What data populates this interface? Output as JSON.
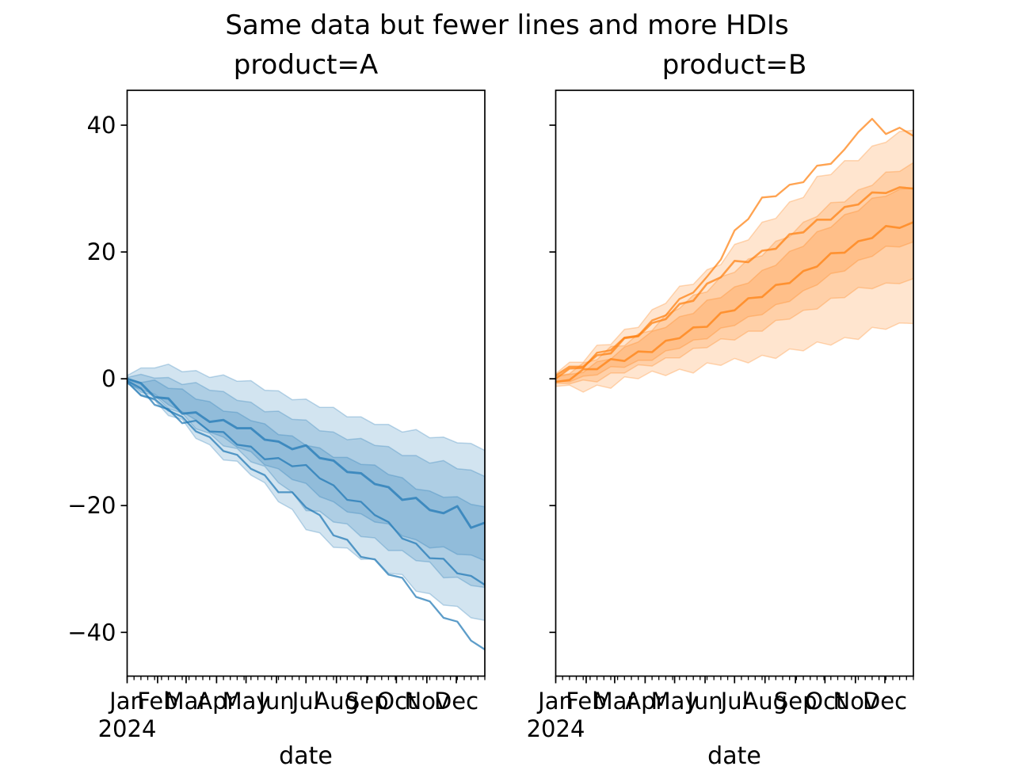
{
  "figure": {
    "suptitle": "Same data but fewer lines and more HDIs",
    "xlabel": "date",
    "year_label": "2024"
  },
  "chart_data": [
    {
      "type": "line",
      "title": "product=A",
      "xlabel": "date",
      "color": "#1f77b4",
      "x_unit": "days since 2024-01-01",
      "xlim_days": [
        0,
        364
      ],
      "ylim": [
        -46.9,
        45.5
      ],
      "yticks": [
        {
          "v": 40,
          "label": "40"
        },
        {
          "v": 20,
          "label": "20"
        },
        {
          "v": 0,
          "label": "0"
        },
        {
          "v": -20,
          "label": "−20"
        },
        {
          "v": -40,
          "label": "−40"
        }
      ],
      "show_ytick_labels": true,
      "month_ticks": [
        {
          "d": 0,
          "label": "Jan"
        },
        {
          "d": 31,
          "label": "Feb"
        },
        {
          "d": 60,
          "label": "Mar"
        },
        {
          "d": 91,
          "label": "Apr"
        },
        {
          "d": 121,
          "label": "May"
        },
        {
          "d": 152,
          "label": "Jun"
        },
        {
          "d": 182,
          "label": "Jul"
        },
        {
          "d": 213,
          "label": "Aug"
        },
        {
          "d": 244,
          "label": "Sep"
        },
        {
          "d": 274,
          "label": "Oct"
        },
        {
          "d": 305,
          "label": "Nov"
        },
        {
          "d": 335,
          "label": "Dec"
        }
      ],
      "x_minor_step_days": 7,
      "x_days": [
        0,
        14,
        28,
        42,
        56,
        70,
        84,
        98,
        112,
        126,
        140,
        154,
        168,
        182,
        196,
        210,
        224,
        238,
        252,
        266,
        280,
        294,
        308,
        322,
        336,
        350,
        364
      ],
      "hdi_bands": [
        {
          "name": "outer",
          "upper": [
            0.5,
            1.7,
            1.7,
            2.3,
            1.1,
            1.3,
            0.2,
            0.6,
            -0.4,
            -0.3,
            -1.8,
            -1.9,
            -3.3,
            -3.2,
            -4.5,
            -4.5,
            -6.0,
            -6.0,
            -7.2,
            -7.2,
            -8.4,
            -8.0,
            -9.3,
            -9.2,
            -10.1,
            -10.2,
            -11.3
          ],
          "lower": [
            -0.5,
            -2.7,
            -3.4,
            -5.8,
            -6.4,
            -9.4,
            -10.4,
            -12.8,
            -13.0,
            -15.2,
            -16.4,
            -19.4,
            -20.6,
            -23.8,
            -24.3,
            -26.6,
            -26.7,
            -28.5,
            -28.4,
            -30.7,
            -30.9,
            -33.5,
            -33.9,
            -35.7,
            -35.9,
            -37.7,
            -38.1
          ]
        },
        {
          "name": "middle",
          "upper": [
            0.2,
            0.7,
            0.1,
            0.2,
            -0.9,
            -0.6,
            -1.8,
            -2.0,
            -3.4,
            -3.7,
            -5.2,
            -5.1,
            -6.4,
            -6.5,
            -8.2,
            -8.4,
            -9.6,
            -9.4,
            -10.5,
            -10.7,
            -12.1,
            -12.1,
            -13.3,
            -12.9,
            -14.2,
            -14.4,
            -15.4
          ],
          "lower": [
            -0.3,
            -2.1,
            -2.6,
            -4.7,
            -5.4,
            -7.9,
            -8.6,
            -10.6,
            -11.0,
            -13.1,
            -13.8,
            -16.4,
            -17.9,
            -20.8,
            -20.9,
            -22.6,
            -22.9,
            -24.9,
            -25.1,
            -27.1,
            -27.1,
            -28.7,
            -28.9,
            -31.4,
            -31.3,
            -32.6,
            -32.9
          ]
        },
        {
          "name": "inner",
          "upper": [
            0.0,
            -0.6,
            -0.2,
            -1.5,
            -1.6,
            -3.2,
            -3.6,
            -5.1,
            -5.3,
            -6.6,
            -7.1,
            -8.8,
            -9.0,
            -10.5,
            -10.9,
            -12.4,
            -12.4,
            -13.5,
            -13.6,
            -15.1,
            -15.6,
            -17.4,
            -17.7,
            -18.7,
            -18.6,
            -19.8,
            -20.2
          ],
          "lower": [
            -0.8,
            -1.7,
            -2.4,
            -4.1,
            -5.2,
            -6.5,
            -8.4,
            -9.2,
            -10.8,
            -11.5,
            -13.6,
            -14.2,
            -15.9,
            -16.5,
            -18.6,
            -19.4,
            -21.0,
            -21.3,
            -22.6,
            -22.9,
            -24.8,
            -25.4,
            -26.7,
            -26.5,
            -27.7,
            -27.8,
            -28.7
          ]
        }
      ],
      "lines": [
        {
          "name": "sample-1",
          "lw": 2.9,
          "values": [
            0.0,
            -0.7,
            -2.9,
            -3.1,
            -5.5,
            -5.3,
            -6.8,
            -6.5,
            -7.8,
            -7.8,
            -9.6,
            -9.9,
            -11.1,
            -10.5,
            -12.5,
            -12.9,
            -14.7,
            -14.9,
            -16.6,
            -17.1,
            -19.1,
            -18.8,
            -20.7,
            -21.2,
            -20.1,
            -23.5,
            -22.7
          ]
        },
        {
          "name": "sample-2",
          "lw": 2.3,
          "values": [
            -0.3,
            -1.5,
            -4.1,
            -4.8,
            -7.0,
            -6.6,
            -8.3,
            -8.4,
            -10.4,
            -10.7,
            -12.7,
            -12.5,
            -13.8,
            -13.6,
            -15.7,
            -16.8,
            -19.1,
            -19.4,
            -21.5,
            -22.6,
            -25.2,
            -26.0,
            -28.3,
            -28.4,
            -30.7,
            -31.1,
            -32.5
          ]
        },
        {
          "name": "sample-3",
          "lw": 2.3,
          "values": [
            -0.5,
            -2.6,
            -3.2,
            -5.0,
            -6.0,
            -8.3,
            -9.2,
            -11.4,
            -12.0,
            -14.2,
            -15.2,
            -17.9,
            -17.9,
            -20.3,
            -21.5,
            -24.7,
            -25.4,
            -28.1,
            -28.5,
            -30.9,
            -31.4,
            -34.4,
            -35.1,
            -37.7,
            -38.3,
            -41.3,
            -42.7
          ]
        }
      ]
    },
    {
      "type": "line",
      "title": "product=B",
      "xlabel": "date",
      "color": "#ff7f0e",
      "x_unit": "days since 2024-01-01",
      "xlim_days": [
        0,
        364
      ],
      "ylim": [
        -46.9,
        45.5
      ],
      "yticks": [
        {
          "v": 40,
          "label": "40"
        },
        {
          "v": 20,
          "label": "20"
        },
        {
          "v": 0,
          "label": "0"
        },
        {
          "v": -20,
          "label": "−20"
        },
        {
          "v": -40,
          "label": "−40"
        }
      ],
      "show_ytick_labels": false,
      "month_ticks": [
        {
          "d": 0,
          "label": "Jan"
        },
        {
          "d": 31,
          "label": "Feb"
        },
        {
          "d": 60,
          "label": "Mar"
        },
        {
          "d": 91,
          "label": "Apr"
        },
        {
          "d": 121,
          "label": "May"
        },
        {
          "d": 152,
          "label": "Jun"
        },
        {
          "d": 182,
          "label": "Jul"
        },
        {
          "d": 213,
          "label": "Aug"
        },
        {
          "d": 244,
          "label": "Sep"
        },
        {
          "d": 274,
          "label": "Oct"
        },
        {
          "d": 305,
          "label": "Nov"
        },
        {
          "d": 335,
          "label": "Dec"
        }
      ],
      "x_minor_step_days": 7,
      "x_days": [
        0,
        14,
        28,
        42,
        56,
        70,
        84,
        98,
        112,
        126,
        140,
        154,
        168,
        182,
        196,
        210,
        224,
        238,
        252,
        266,
        280,
        294,
        308,
        322,
        336,
        350,
        364
      ],
      "hdi_bands": [
        {
          "name": "outer",
          "upper": [
            0.8,
            2.6,
            2.6,
            5.3,
            5.4,
            7.8,
            8.1,
            10.9,
            11.9,
            14.6,
            14.9,
            17.2,
            18.0,
            21.2,
            21.9,
            24.7,
            25.3,
            27.9,
            28.6,
            31.9,
            32.2,
            34.4,
            34.4,
            36.7,
            37.3,
            39.0,
            39.2
          ],
          "lower": [
            -1.2,
            -1.0,
            -2.1,
            -1.0,
            -1.5,
            0.3,
            0.0,
            1.2,
            0.5,
            1.5,
            0.9,
            2.5,
            2.1,
            3.2,
            2.5,
            3.7,
            3.2,
            4.7,
            4.4,
            5.8,
            5.3,
            6.5,
            6.2,
            8.1,
            7.8,
            8.8,
            8.7
          ]
        },
        {
          "name": "middle",
          "upper": [
            0.5,
            0.8,
            2.5,
            3.0,
            5.1,
            5.2,
            7.1,
            7.6,
            10.1,
            11.1,
            13.2,
            13.7,
            16.1,
            16.8,
            18.9,
            19.4,
            21.7,
            22.4,
            24.7,
            25.6,
            27.8,
            27.9,
            29.8,
            30.5,
            32.6,
            32.7,
            34.1
          ],
          "lower": [
            -0.7,
            -0.8,
            -0.2,
            -0.5,
            0.9,
            0.9,
            2.2,
            2.0,
            3.3,
            3.3,
            4.8,
            4.9,
            6.3,
            6.1,
            7.5,
            7.5,
            9.2,
            9.4,
            10.8,
            11.0,
            12.7,
            12.8,
            14.4,
            14.2,
            15.1,
            15.0,
            15.8
          ]
        },
        {
          "name": "inner",
          "upper": [
            0.3,
            0.7,
            1.0,
            2.7,
            3.1,
            5.0,
            5.8,
            7.5,
            8.1,
            9.8,
            10.3,
            12.4,
            12.8,
            14.5,
            15.1,
            17.1,
            17.9,
            20.1,
            20.9,
            23.2,
            23.9,
            25.9,
            26.5,
            28.5,
            28.8,
            29.9,
            30.1
          ],
          "lower": [
            -0.4,
            -0.5,
            0.4,
            0.6,
            1.9,
            1.8,
            2.9,
            2.9,
            4.4,
            4.8,
            6.1,
            6.3,
            8.0,
            8.4,
            9.8,
            10.1,
            11.7,
            12.2,
            13.9,
            14.8,
            16.6,
            17.0,
            18.7,
            19.3,
            20.9,
            20.8,
            21.6
          ]
        }
      ],
      "lines": [
        {
          "name": "sample-1",
          "lw": 2.3,
          "values": [
            0.0,
            1.6,
            1.7,
            4.1,
            4.5,
            6.5,
            6.8,
            9.2,
            10.0,
            12.6,
            13.6,
            16.1,
            18.8,
            23.4,
            25.2,
            28.6,
            28.8,
            30.6,
            31.0,
            33.6,
            33.9,
            36.2,
            38.9,
            41.0,
            38.6,
            39.6,
            38.3
          ]
        },
        {
          "name": "sample-2",
          "lw": 2.6,
          "values": [
            0.5,
            1.9,
            1.9,
            3.7,
            4.0,
            6.4,
            6.7,
            8.8,
            9.4,
            11.8,
            12.3,
            15.0,
            16.0,
            18.6,
            18.4,
            20.2,
            20.5,
            22.8,
            23.1,
            25.1,
            25.1,
            27.1,
            27.5,
            29.4,
            29.3,
            30.2,
            30.0
          ]
        },
        {
          "name": "sample-3",
          "lw": 2.6,
          "values": [
            -0.5,
            -0.2,
            1.5,
            1.5,
            3.1,
            2.8,
            4.3,
            4.2,
            6.0,
            6.4,
            8.1,
            8.2,
            10.4,
            10.8,
            12.7,
            12.9,
            14.8,
            15.1,
            17.0,
            17.7,
            19.8,
            19.9,
            21.7,
            22.2,
            24.1,
            23.8,
            24.7
          ]
        }
      ]
    }
  ]
}
